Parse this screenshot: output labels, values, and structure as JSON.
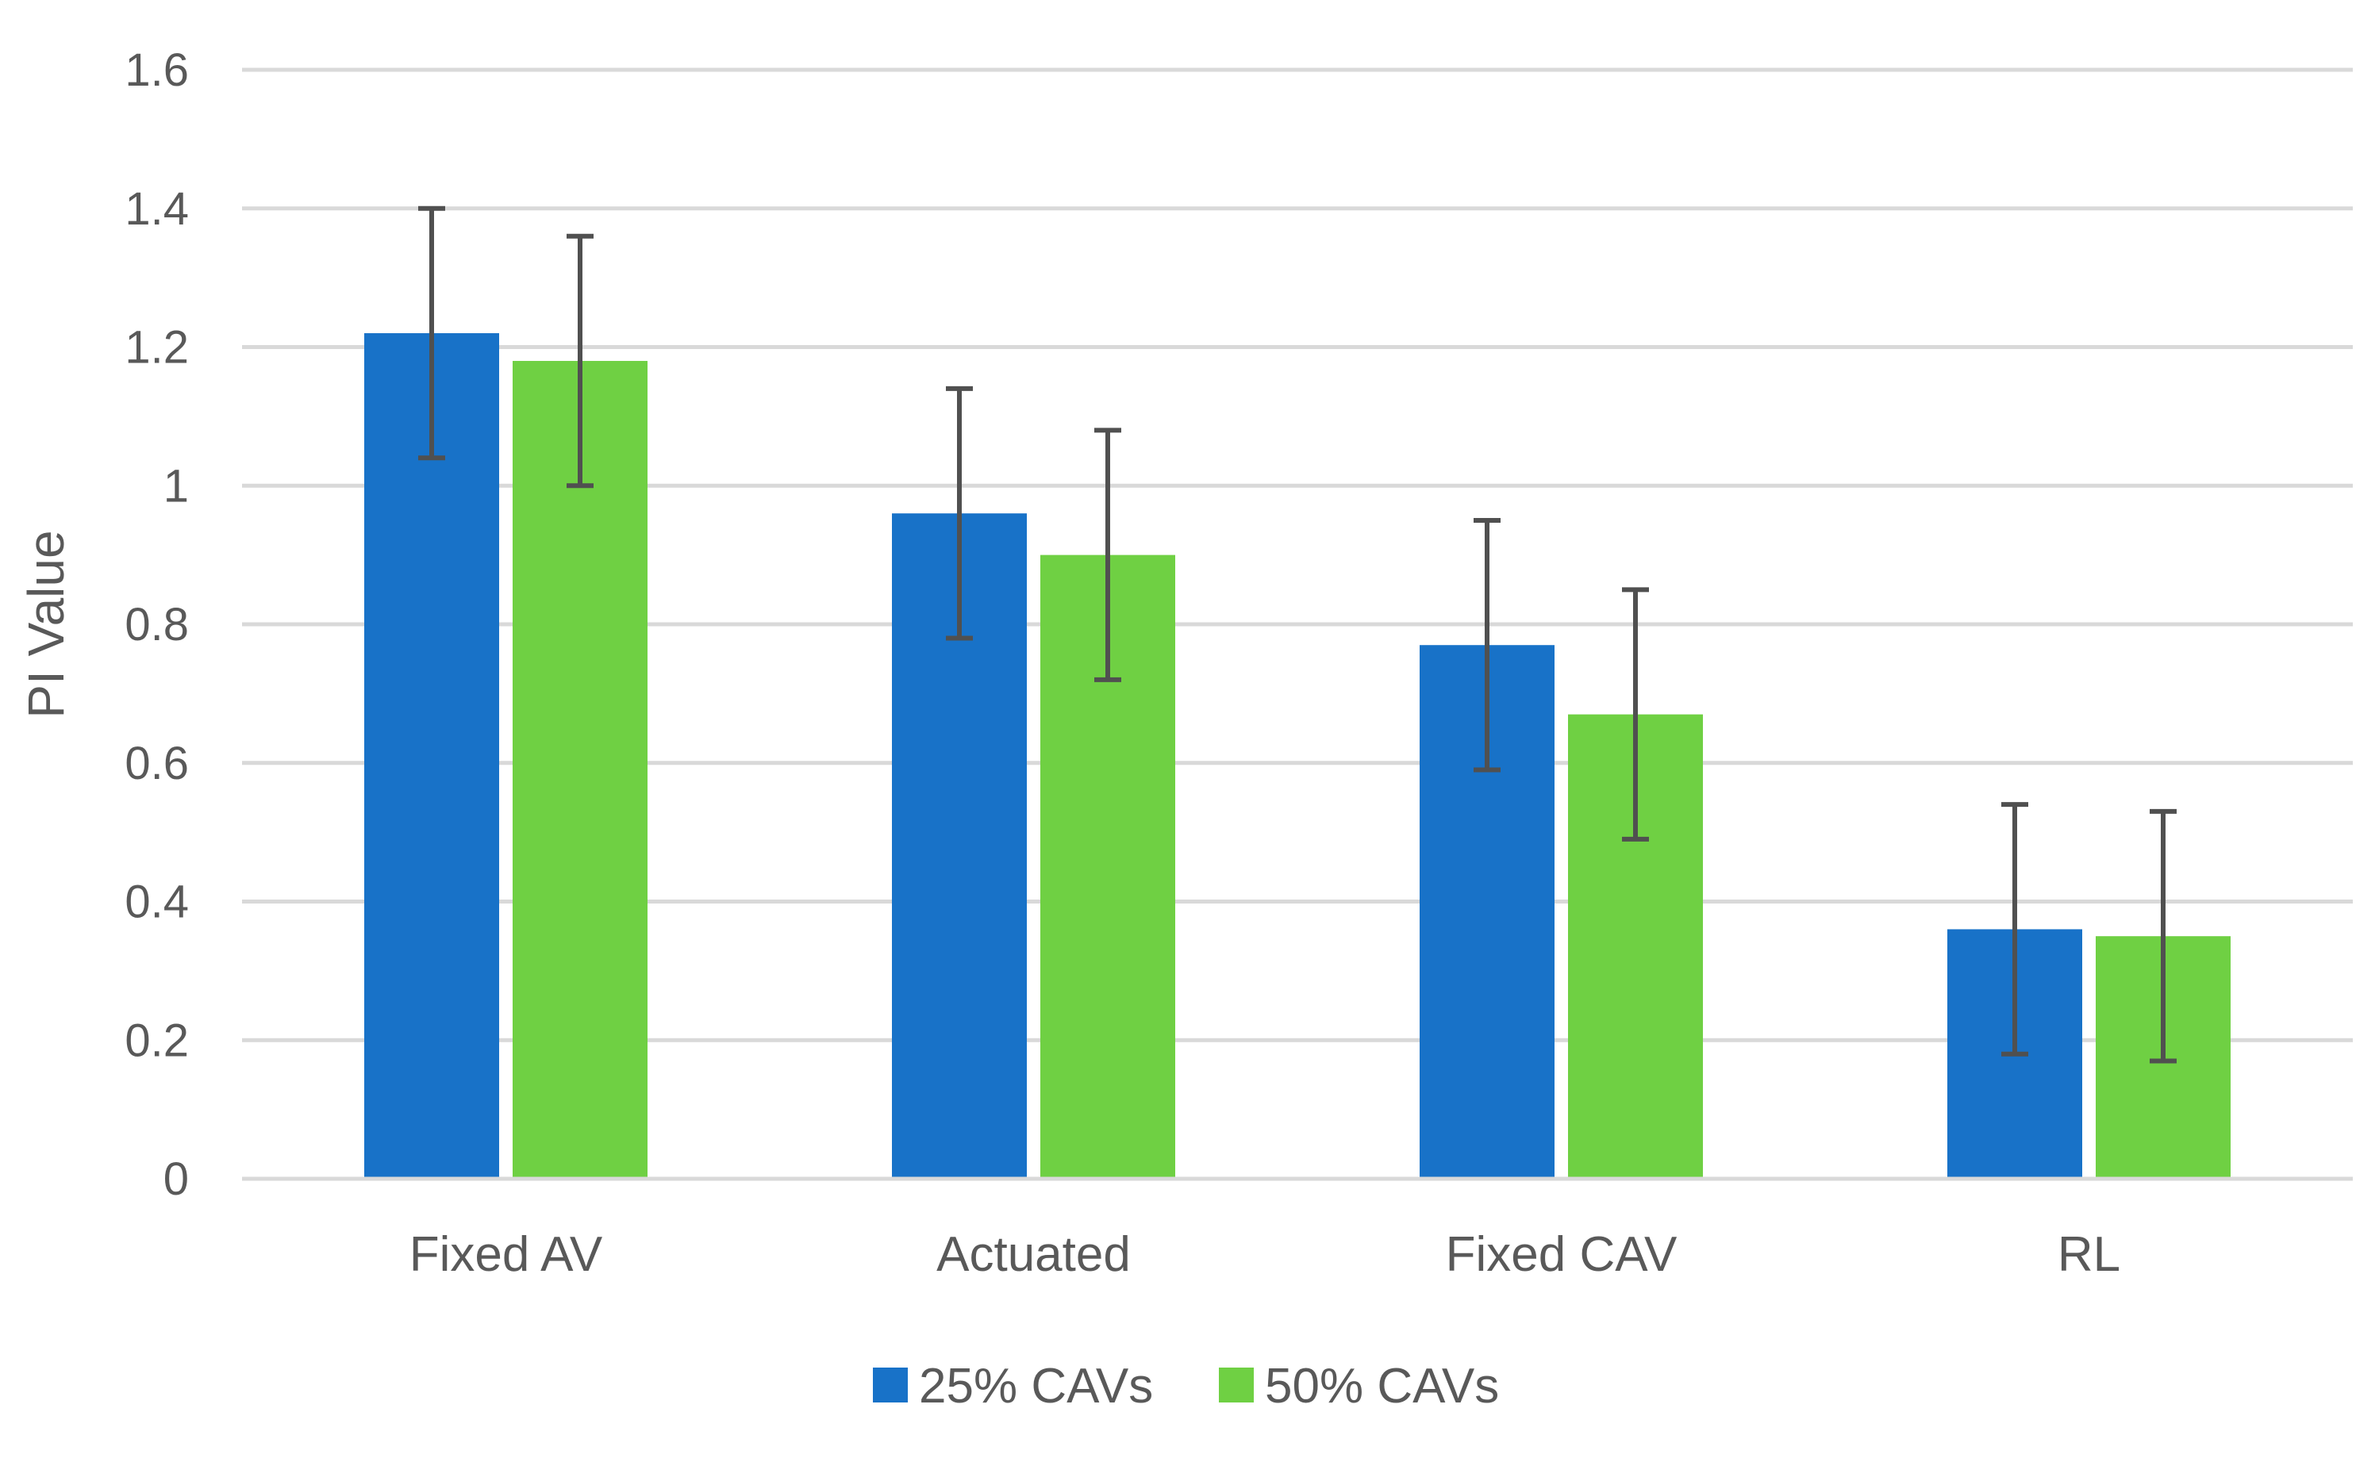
{
  "chart_data": {
    "type": "bar",
    "title": "",
    "xlabel": "",
    "ylabel": "PI Value",
    "ylim": [
      0,
      1.6
    ],
    "yticks": [
      0,
      0.2,
      0.4,
      0.6,
      0.8,
      1,
      1.2,
      1.4,
      1.6
    ],
    "ytick_labels": [
      "0",
      "0.2",
      "0.4",
      "0.6",
      "0.8",
      "1",
      "1.2",
      "1.4",
      "1.6"
    ],
    "grid": true,
    "legend_position": "bottom-center",
    "categories": [
      "Fixed AV",
      "Actuated",
      "Fixed CAV",
      "RL"
    ],
    "series": [
      {
        "name": "25% CAVs",
        "color": "#1872c8",
        "values": [
          1.22,
          0.96,
          0.77,
          0.36
        ],
        "error": [
          0.18,
          0.18,
          0.18,
          0.18
        ]
      },
      {
        "name": "50% CAVs",
        "color": "#6fd043",
        "values": [
          1.18,
          0.9,
          0.67,
          0.35
        ],
        "error": [
          0.18,
          0.18,
          0.18,
          0.18
        ]
      }
    ]
  }
}
